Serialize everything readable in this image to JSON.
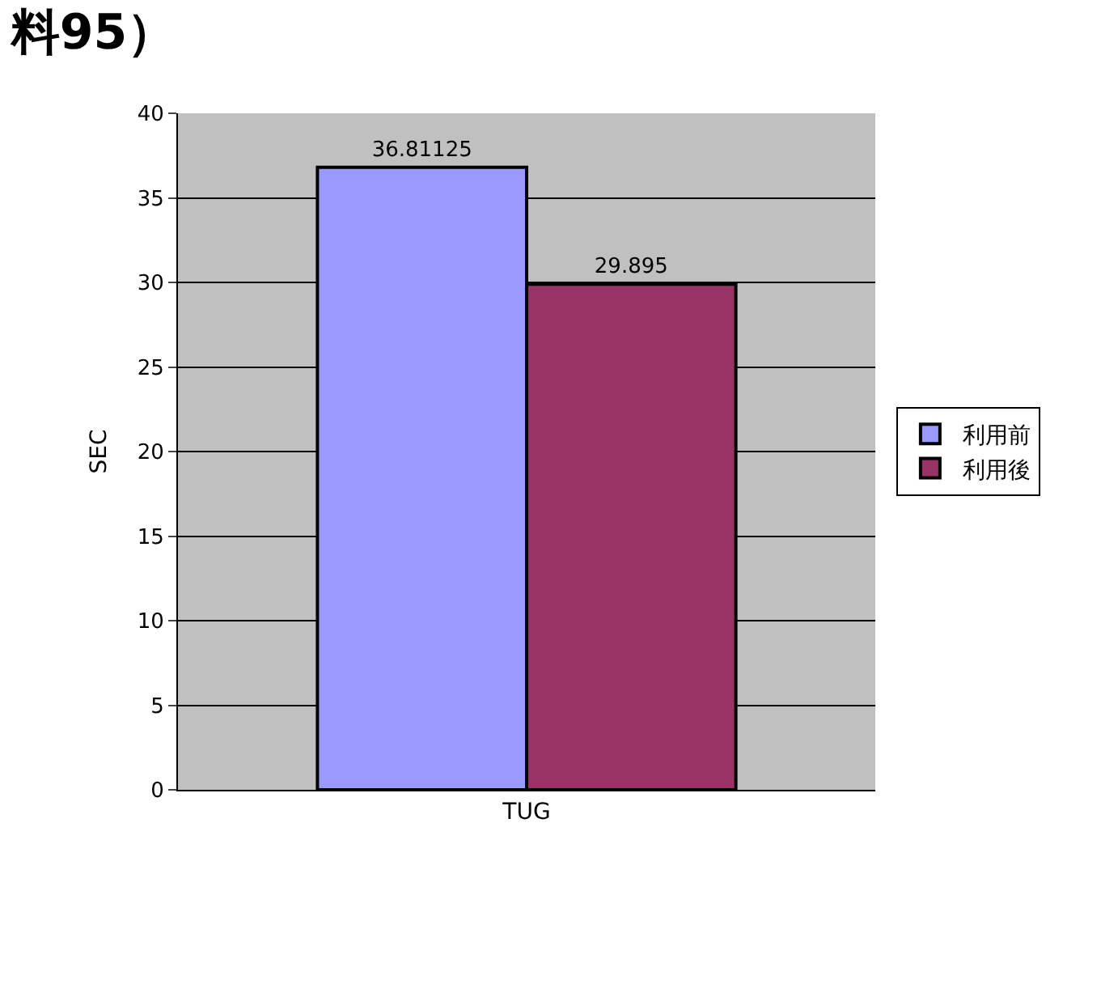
{
  "chart_data": {
    "type": "bar",
    "title": "料95）",
    "categories": [
      "TUG"
    ],
    "ylabel": "SEC",
    "series": [
      {
        "name": "利用前",
        "color": "#9999ff",
        "values": [
          36.81125
        ]
      },
      {
        "name": "利用後",
        "color": "#993366",
        "values": [
          29.895
        ]
      }
    ],
    "ylim": [
      0,
      40
    ],
    "yticks": [
      0,
      5,
      10,
      15,
      20,
      25,
      30,
      35,
      40
    ],
    "grid": "y",
    "legend": "right",
    "data_labels": true
  }
}
